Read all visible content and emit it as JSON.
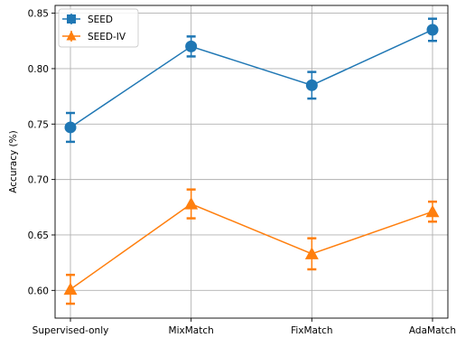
{
  "chart_data": {
    "type": "line",
    "categories": [
      "Supervised-only",
      "MixMatch",
      "FixMatch",
      "AdaMatch"
    ],
    "ylabel": "Accuracy (%)",
    "xlabel": "",
    "ylim": [
      0.575,
      0.857
    ],
    "yticks": [
      "0.60",
      "0.65",
      "0.70",
      "0.75",
      "0.80",
      "0.85"
    ],
    "grid": true,
    "legend_position": "top-left",
    "series": [
      {
        "name": "SEED",
        "color": "#1f77b4",
        "marker": "circle",
        "values": [
          0.747,
          0.82,
          0.785,
          0.835
        ],
        "errors": [
          0.013,
          0.009,
          0.012,
          0.01
        ]
      },
      {
        "name": "SEED-IV",
        "color": "#ff7f0e",
        "marker": "triangle",
        "values": [
          0.601,
          0.678,
          0.633,
          0.671
        ],
        "errors": [
          0.013,
          0.013,
          0.014,
          0.009
        ]
      }
    ]
  }
}
